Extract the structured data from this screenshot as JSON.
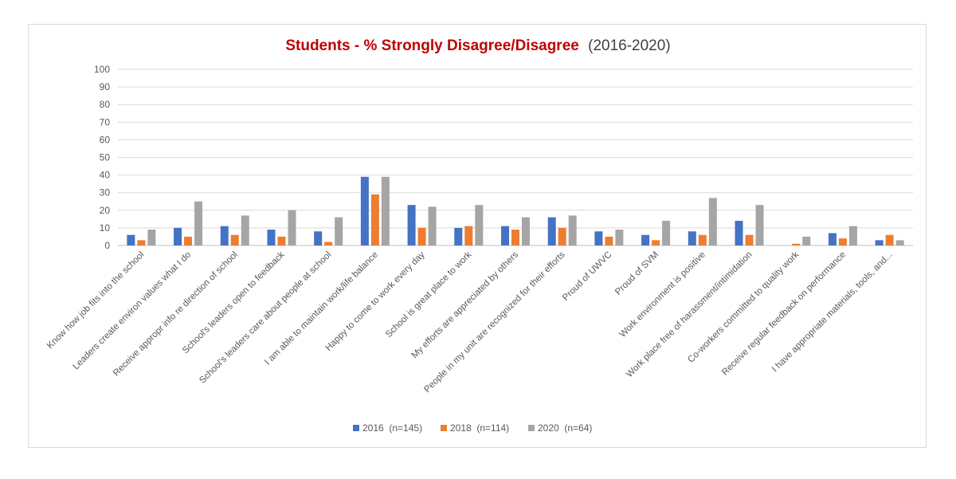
{
  "chart_data": {
    "type": "bar",
    "title": "Students - % Strongly Disagree/Disagree",
    "subtitle": "(2016-2020)",
    "xlabel": "",
    "ylabel": "",
    "ylim": [
      0,
      100
    ],
    "yticks": [
      0,
      10,
      20,
      30,
      40,
      50,
      60,
      70,
      80,
      90,
      100
    ],
    "grid": true,
    "legend_position": "bottom",
    "categories": [
      "Know how job fits into the school",
      "Leaders create environ values what I do",
      "Receive appropr info re direction of school",
      "School's leaders open to feedback",
      "School's leaders care about people at school",
      "I am able to maintain work/life balance",
      "Happy to come to work every day",
      "School is great place to work",
      "My efforts are appreciated by others",
      "People in my unit are recognized for their efforts",
      "Proud of UWVC",
      "Proud of SVM",
      "Work environment is positive",
      "Work place free of harassment/intimidation",
      "Co-workers committed to quality work",
      "Receive regular feedback on performance",
      "I have appropriate materials, tools, and..."
    ],
    "series": [
      {
        "name": "2016  (n=145)",
        "color": "#4472c4",
        "values": [
          6,
          10,
          11,
          9,
          8,
          39,
          23,
          10,
          11,
          16,
          8,
          6,
          8,
          14,
          0,
          7,
          3
        ]
      },
      {
        "name": "2018  (n=114)",
        "color": "#ed7d31",
        "values": [
          3,
          5,
          6,
          5,
          2,
          29,
          10,
          11,
          9,
          10,
          5,
          3,
          6,
          6,
          1,
          4,
          6
        ]
      },
      {
        "name": "2020  (n=64)",
        "color": "#a5a5a5",
        "values": [
          9,
          25,
          17,
          20,
          16,
          39,
          22,
          23,
          16,
          17,
          9,
          14,
          27,
          23,
          5,
          11,
          3
        ]
      }
    ]
  }
}
